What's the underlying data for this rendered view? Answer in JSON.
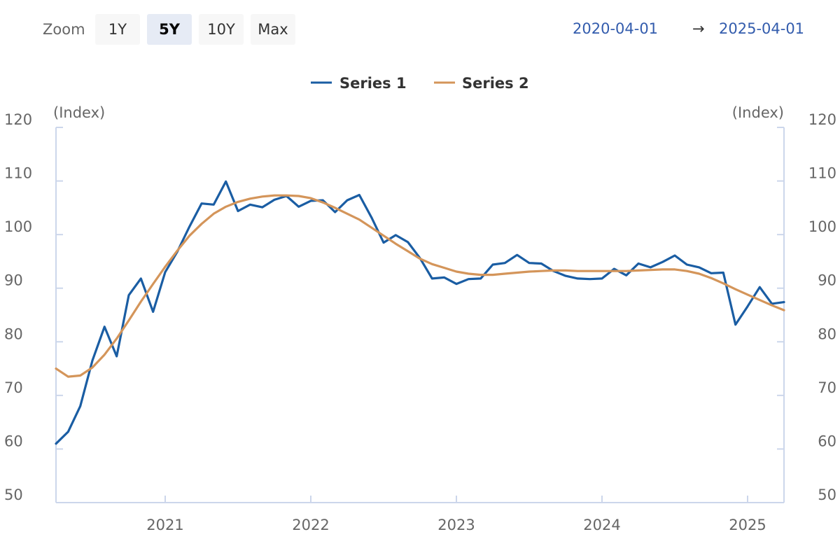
{
  "toolbar": {
    "zoom_label": "Zoom",
    "buttons": [
      {
        "label": "1Y",
        "active": false
      },
      {
        "label": "5Y",
        "active": true
      },
      {
        "label": "10Y",
        "active": false
      },
      {
        "label": "Max",
        "active": false
      }
    ],
    "range_from": "2020-04-01",
    "range_arrow": "→",
    "range_to": "2025-04-01"
  },
  "chart_data": {
    "type": "line",
    "title": "",
    "xlabel": "",
    "y_unit_left": "(Index)",
    "y_unit_right": "(Index)",
    "ylim": [
      50,
      120
    ],
    "yticks": [
      50,
      60,
      70,
      80,
      90,
      100,
      110,
      120
    ],
    "x_start": "2020-04",
    "x_end": "2025-04",
    "x_ticks": [
      "2021",
      "2022",
      "2023",
      "2024",
      "2025"
    ],
    "grid": false,
    "legend": "top-center",
    "series": [
      {
        "name": "Series 1",
        "color": "#1a5da3",
        "x": [
          "2020-04",
          "2020-05",
          "2020-06",
          "2020-07",
          "2020-08",
          "2020-09",
          "2020-10",
          "2020-11",
          "2020-12",
          "2021-01",
          "2021-02",
          "2021-03",
          "2021-04",
          "2021-05",
          "2021-06",
          "2021-07",
          "2021-08",
          "2021-09",
          "2021-10",
          "2021-11",
          "2021-12",
          "2022-01",
          "2022-02",
          "2022-03",
          "2022-04",
          "2022-05",
          "2022-06",
          "2022-07",
          "2022-08",
          "2022-09",
          "2022-10",
          "2022-11",
          "2022-12",
          "2023-01",
          "2023-02",
          "2023-03",
          "2023-04",
          "2023-05",
          "2023-06",
          "2023-07",
          "2023-08",
          "2023-09",
          "2023-10",
          "2023-11",
          "2023-12",
          "2024-01",
          "2024-02",
          "2024-03",
          "2024-04",
          "2024-05",
          "2024-06",
          "2024-07",
          "2024-08",
          "2024-09",
          "2024-10",
          "2024-11",
          "2024-12",
          "2025-01",
          "2025-02",
          "2025-03",
          "2025-04"
        ],
        "values": [
          61.0,
          63.2,
          68.0,
          76.5,
          82.8,
          77.3,
          88.7,
          91.8,
          85.6,
          93.0,
          96.8,
          101.5,
          105.8,
          105.6,
          109.9,
          104.4,
          105.6,
          105.1,
          106.5,
          107.2,
          105.2,
          106.3,
          106.4,
          104.2,
          106.4,
          107.4,
          103.2,
          98.5,
          99.9,
          98.6,
          95.6,
          91.8,
          92.0,
          90.8,
          91.7,
          91.8,
          94.4,
          94.7,
          96.2,
          94.7,
          94.6,
          93.2,
          92.3,
          91.8,
          91.7,
          91.8,
          93.6,
          92.4,
          94.6,
          93.9,
          94.9,
          96.1,
          94.4,
          93.9,
          92.8,
          92.9,
          83.2,
          86.6,
          90.2,
          87.1,
          87.4
        ]
      },
      {
        "name": "Series 2",
        "color": "#d4955a",
        "x": [
          "2020-04",
          "2020-05",
          "2020-06",
          "2020-07",
          "2020-08",
          "2020-09",
          "2020-10",
          "2020-11",
          "2020-12",
          "2021-01",
          "2021-02",
          "2021-03",
          "2021-04",
          "2021-05",
          "2021-06",
          "2021-07",
          "2021-08",
          "2021-09",
          "2021-10",
          "2021-11",
          "2021-12",
          "2022-01",
          "2022-02",
          "2022-03",
          "2022-04",
          "2022-05",
          "2022-06",
          "2022-07",
          "2022-08",
          "2022-09",
          "2022-10",
          "2022-11",
          "2022-12",
          "2023-01",
          "2023-02",
          "2023-03",
          "2023-04",
          "2023-05",
          "2023-06",
          "2023-07",
          "2023-08",
          "2023-09",
          "2023-10",
          "2023-11",
          "2023-12",
          "2024-01",
          "2024-02",
          "2024-03",
          "2024-04",
          "2024-05",
          "2024-06",
          "2024-07",
          "2024-08",
          "2024-09",
          "2024-10",
          "2024-11",
          "2024-12",
          "2025-01",
          "2025-02",
          "2025-03",
          "2025-04"
        ],
        "values": [
          75.0,
          73.5,
          73.7,
          75.2,
          77.6,
          80.6,
          84.0,
          87.5,
          90.8,
          94.0,
          97.0,
          99.8,
          102.0,
          103.9,
          105.2,
          106.1,
          106.7,
          107.1,
          107.3,
          107.3,
          107.2,
          106.8,
          106.0,
          105.0,
          103.9,
          102.8,
          101.3,
          99.8,
          98.3,
          96.9,
          95.5,
          94.5,
          93.8,
          93.1,
          92.7,
          92.5,
          92.5,
          92.7,
          92.9,
          93.1,
          93.2,
          93.3,
          93.3,
          93.2,
          93.2,
          93.2,
          93.2,
          93.2,
          93.3,
          93.4,
          93.5,
          93.5,
          93.2,
          92.7,
          91.9,
          90.9,
          89.8,
          88.8,
          87.8,
          86.8,
          85.9
        ]
      }
    ]
  }
}
